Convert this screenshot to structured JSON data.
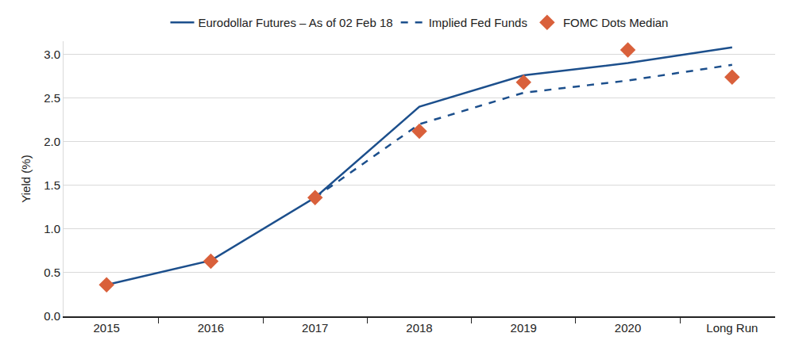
{
  "chart_data": {
    "type": "line",
    "y_label": "Yield (%)",
    "categories": [
      "2015",
      "2016",
      "2017",
      "2018",
      "2019",
      "2020",
      "Long Run"
    ],
    "series": [
      {
        "name": "Eurodollar Futures – As of 02 Feb 18",
        "type": "line",
        "color": "#1c4f8c",
        "line_style": "solid",
        "values": [
          0.36,
          0.64,
          1.36,
          2.4,
          2.76,
          2.9,
          3.08
        ]
      },
      {
        "name": "Implied Fed Funds",
        "type": "line",
        "color": "#1c4f8c",
        "line_style": "dash",
        "values": [
          null,
          null,
          1.36,
          2.2,
          2.56,
          2.7,
          2.88
        ]
      },
      {
        "name": "FOMC Dots Median",
        "type": "scatter",
        "color": "#d9603b",
        "marker": "diamond",
        "values": [
          0.36,
          0.63,
          1.36,
          2.12,
          2.68,
          3.05,
          2.74
        ]
      }
    ],
    "ylim": [
      0,
      3.15
    ],
    "yticks": [
      {
        "value": 0,
        "label": "0.0"
      },
      {
        "value": 0.5,
        "label": "0.5"
      },
      {
        "value": 1,
        "label": "1.0"
      },
      {
        "value": 1.5,
        "label": "1.5"
      },
      {
        "value": 2,
        "label": "2.0"
      },
      {
        "value": 2.5,
        "label": "2.5"
      },
      {
        "value": 3,
        "label": "3.0"
      }
    ],
    "grid": true,
    "legend": "top"
  }
}
